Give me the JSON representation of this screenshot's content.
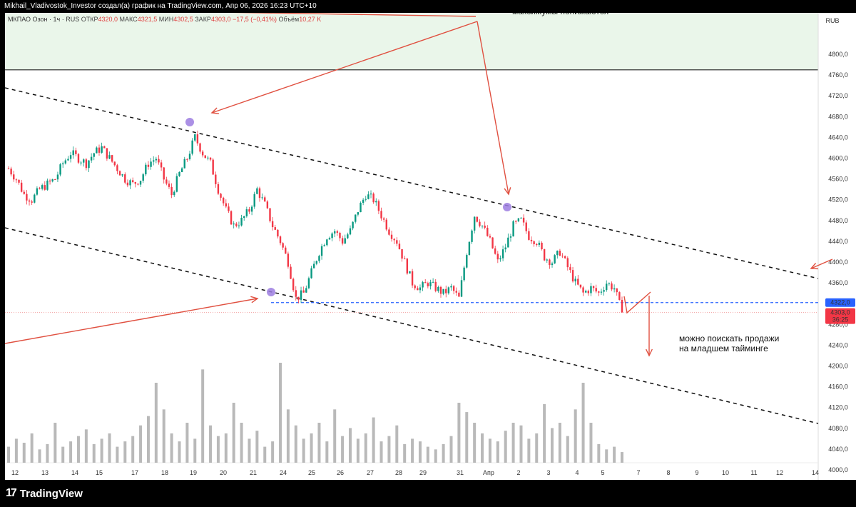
{
  "topbar": {
    "text": "Mikhail_Vladivostok_Investor создал(а) график на TradingView.com, Апр 06, 2026 16:23 UTC+10"
  },
  "header": {
    "symbol": "МКПАО Озон · 1ч · RUS",
    "open_label": "ОТКР",
    "open": "4320,0",
    "high_label": "МАКС",
    "high": "4321,5",
    "low_label": "МИН",
    "low": "4302,5",
    "close_label": "ЗАКР",
    "close": "4303,0",
    "change": "−17,5 (−0,41%)",
    "volume_label": "Объём",
    "volume": "10,27 K"
  },
  "brand": {
    "logo": "17",
    "name": "TradingView"
  },
  "currency": "RUB",
  "annotation": {
    "top": "максимумы понижаются",
    "line1": "можно поискать продажи",
    "line2": "на младшем таймингe"
  },
  "price_badges": {
    "level": "4322,0",
    "last": "4303,0",
    "timer": "36:25"
  },
  "colors": {
    "up": "#089981",
    "down": "#f23645",
    "arrow": "#e05040",
    "level": "#2962ff",
    "zone": "#eaf6ea",
    "marker": "#9c7ce0"
  },
  "chart_data": {
    "type": "candlestick",
    "interval": "1h",
    "y_ticks": [
      "4800,0",
      "4760,0",
      "4720,0",
      "4680,0",
      "4640,0",
      "4600,0",
      "4560,0",
      "4520,0",
      "4480,0",
      "4440,0",
      "4400,0",
      "4360,0",
      "4320,0",
      "4280,0",
      "4240,0",
      "4200,0",
      "4160,0",
      "4120,0",
      "4080,0",
      "4040,0",
      "4000,0"
    ],
    "ylim": [
      3998,
      4830
    ],
    "x_ticks": [
      "12",
      "13",
      "14",
      "15",
      "17",
      "18",
      "19",
      "20",
      "21",
      "24",
      "25",
      "26",
      "27",
      "28",
      "29",
      "31",
      "Апр",
      "2",
      "3",
      "4",
      "5",
      "7",
      "8",
      "9",
      "10",
      "11",
      "12",
      "14"
    ],
    "price_path": [
      4580,
      4560,
      4530,
      4520,
      4540,
      4550,
      4560,
      4590,
      4610,
      4600,
      4590,
      4610,
      4620,
      4600,
      4580,
      4560,
      4550,
      4560,
      4590,
      4600,
      4560,
      4530,
      4570,
      4600,
      4640,
      4610,
      4590,
      4540,
      4500,
      4470,
      4480,
      4500,
      4540,
      4510,
      4470,
      4440,
      4400,
      4330,
      4340,
      4380,
      4420,
      4450,
      4460,
      4440,
      4460,
      4500,
      4530,
      4520,
      4490,
      4460,
      4440,
      4400,
      4360,
      4350,
      4360,
      4350,
      4340,
      4350,
      4330,
      4420,
      4490,
      4470,
      4440,
      4400,
      4430,
      4470,
      4480,
      4450,
      4440,
      4410,
      4400,
      4420,
      4390,
      4360,
      4340,
      4350,
      4340,
      4360,
      4350,
      4303
    ],
    "volume_path": [
      12,
      18,
      15,
      22,
      10,
      14,
      30,
      12,
      16,
      20,
      25,
      14,
      18,
      22,
      12,
      16,
      20,
      28,
      35,
      60,
      40,
      22,
      16,
      30,
      18,
      70,
      28,
      20,
      22,
      45,
      30,
      18,
      24,
      12,
      16,
      75,
      40,
      28,
      18,
      22,
      30,
      16,
      40,
      20,
      26,
      18,
      22,
      34,
      16,
      20,
      28,
      14,
      18,
      16,
      12,
      10,
      14,
      20,
      45,
      38,
      30,
      22,
      18,
      16,
      24,
      30,
      28,
      18,
      22,
      44,
      26,
      30,
      20,
      40,
      60,
      30,
      14,
      10,
      12,
      8
    ],
    "level": 4322,
    "last_price": 4303
  }
}
